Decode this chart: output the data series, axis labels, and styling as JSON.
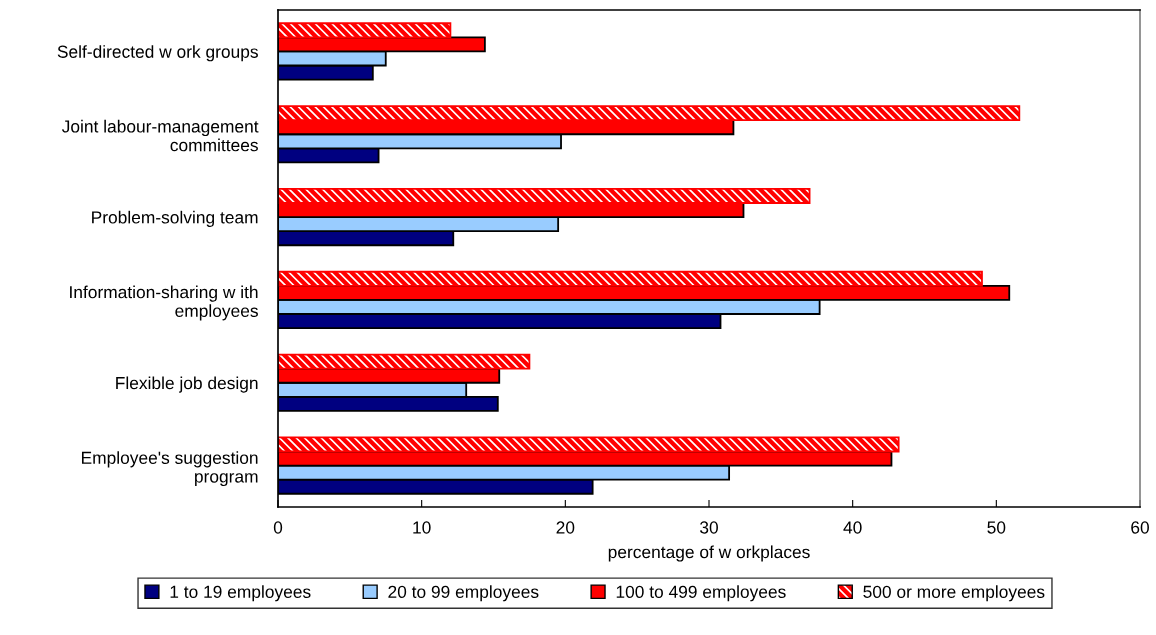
{
  "chart_data": {
    "type": "bar",
    "orientation": "horizontal",
    "xlabel": "percentage of w orkplaces",
    "categories": [
      "Self-directed w ork groups",
      "Joint labour-management committees",
      "Problem-solving team",
      "Information-sharing w ith employees",
      "Flexible job design",
      "Employee's suggestion program"
    ],
    "series": [
      {
        "name": "1 to 19 employees",
        "color": "#000080",
        "values": [
          6.6,
          7.0,
          12.2,
          30.8,
          15.3,
          21.9
        ]
      },
      {
        "name": "20 to 99 employees",
        "color": "#99ccff",
        "values": [
          7.5,
          19.7,
          19.5,
          37.7,
          13.1,
          31.4
        ]
      },
      {
        "name": "100 to 499 employees",
        "color": "#ff0000",
        "values": [
          14.4,
          31.7,
          32.4,
          50.9,
          15.4,
          42.7
        ]
      },
      {
        "name": "500 or more employees",
        "color": "#ff0000",
        "values": [
          12.0,
          51.6,
          37.0,
          49.0,
          17.5,
          43.2
        ]
      }
    ],
    "xlim": [
      0,
      60
    ],
    "xticks": [
      0,
      10,
      20,
      30,
      40,
      50,
      60
    ],
    "grid": false,
    "legend": "bottom"
  }
}
